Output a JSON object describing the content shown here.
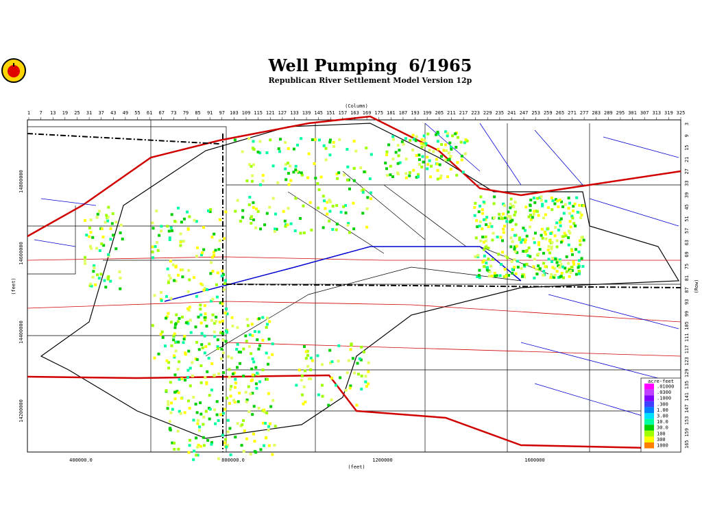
{
  "header": {
    "title": "Well Pumping  6/1965",
    "subtitle": "Republican River Settlement Model Version 12p"
  },
  "map": {
    "top_axis": {
      "label": "(Column)",
      "ticks": [
        1,
        7,
        13,
        19,
        25,
        31,
        37,
        43,
        49,
        55,
        61,
        67,
        73,
        79,
        85,
        91,
        97,
        103,
        109,
        115,
        121,
        127,
        133,
        139,
        145,
        151,
        157,
        163,
        169,
        175,
        181,
        187,
        193,
        199,
        205,
        211,
        217,
        223,
        229,
        235,
        241,
        247,
        253,
        259,
        265,
        271,
        277,
        283,
        289,
        295,
        301,
        307,
        313,
        319,
        325
      ]
    },
    "right_axis": {
      "label": "(Row)",
      "ticks": [
        3,
        9,
        15,
        21,
        27,
        33,
        39,
        45,
        51,
        57,
        63,
        69,
        75,
        81,
        87,
        93,
        99,
        105,
        111,
        117,
        123,
        129,
        135,
        141,
        147,
        153,
        159,
        165
      ]
    },
    "left_axis": {
      "label": "(feet)",
      "ticks": [
        "14800000",
        "14600000",
        "14400000",
        "14200000"
      ]
    },
    "bottom_axis": {
      "label": "(feet)",
      "ticks": [
        "400000.0",
        "800000.0",
        "1200000",
        "1600000"
      ]
    },
    "legend": {
      "title": "acre-feet",
      "items": [
        {
          "label": ".01000",
          "color": "#ff00ff"
        },
        {
          "label": ".0300",
          "color": "#c040ff"
        },
        {
          "label": ".1000",
          "color": "#8000ff"
        },
        {
          "label": ".300",
          "color": "#4040ff"
        },
        {
          "label": "1.00",
          "color": "#0080ff"
        },
        {
          "label": "3.00",
          "color": "#00e0ff"
        },
        {
          "label": "10.0",
          "color": "#00ffa0"
        },
        {
          "label": "30.0",
          "color": "#00d000"
        },
        {
          "label": "100",
          "color": "#a0ff00"
        },
        {
          "label": "300",
          "color": "#ffff00"
        },
        {
          "label": "1000",
          "color": "#ff8000"
        }
      ]
    }
  }
}
